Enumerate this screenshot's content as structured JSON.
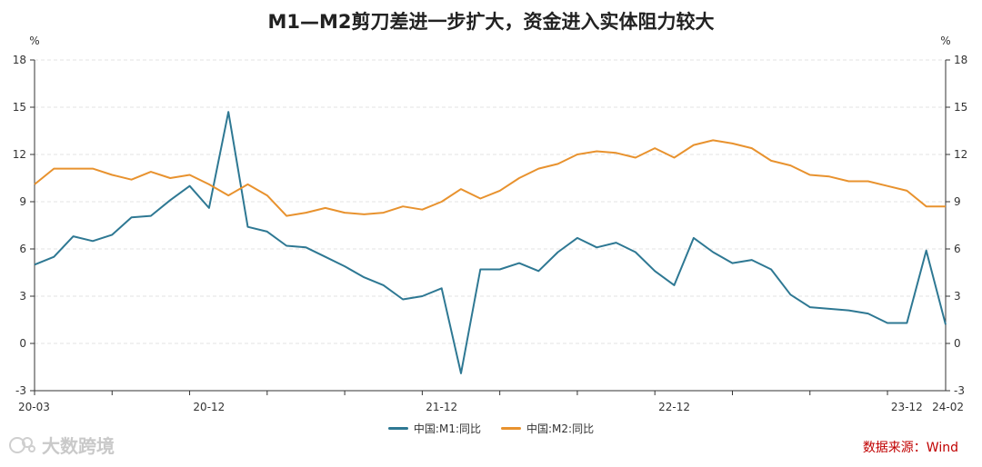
{
  "colors": {
    "m1": "#2e7893",
    "m2": "#e8922e",
    "source": "#c00000",
    "grid": "#e3e3e3"
  },
  "watermark_text": "大数跨境",
  "source_note": "数据来源：Wind",
  "chart_data": {
    "type": "line",
    "title": "M1—M2剪刀差进一步扩大，资金进入实体阻力较大",
    "ylabel_left": "%",
    "ylabel_right": "%",
    "ylim": [
      -3,
      18
    ],
    "yticks": [
      -3,
      0,
      3,
      6,
      9,
      12,
      15,
      18
    ],
    "grid": true,
    "legend_position": "bottom",
    "x": [
      "20-03",
      "20-04",
      "20-05",
      "20-06",
      "20-07",
      "20-08",
      "20-09",
      "20-10",
      "20-11",
      "20-12",
      "21-01",
      "21-02",
      "21-03",
      "21-04",
      "21-05",
      "21-06",
      "21-07",
      "21-08",
      "21-09",
      "21-10",
      "21-11",
      "21-12",
      "22-01",
      "22-02",
      "22-03",
      "22-04",
      "22-05",
      "22-06",
      "22-07",
      "22-08",
      "22-09",
      "22-10",
      "22-11",
      "22-12",
      "23-01",
      "23-02",
      "23-03",
      "23-04",
      "23-05",
      "23-06",
      "23-07",
      "23-08",
      "23-09",
      "23-10",
      "23-11",
      "23-12",
      "24-01",
      "24-02"
    ],
    "xtick_labels": [
      {
        "index": 0,
        "label": "20-03"
      },
      {
        "index": 9,
        "label": "20-12"
      },
      {
        "index": 21,
        "label": "21-12"
      },
      {
        "index": 33,
        "label": "22-12"
      },
      {
        "index": 45,
        "label": "23-12"
      },
      {
        "index": 47,
        "label": "24-02"
      }
    ],
    "series": [
      {
        "name": "中国:M1:同比",
        "color_key": "m1",
        "values": [
          5.0,
          5.5,
          6.8,
          6.5,
          6.9,
          8.0,
          8.1,
          9.1,
          10.0,
          8.6,
          14.7,
          7.4,
          7.1,
          6.2,
          6.1,
          5.5,
          4.9,
          4.2,
          3.7,
          2.8,
          3.0,
          3.5,
          -1.9,
          4.7,
          4.7,
          5.1,
          4.6,
          5.8,
          6.7,
          6.1,
          6.4,
          5.8,
          4.6,
          3.7,
          6.7,
          5.8,
          5.1,
          5.3,
          4.7,
          3.1,
          2.3,
          2.2,
          2.1,
          1.9,
          1.3,
          1.3,
          5.9,
          1.2
        ]
      },
      {
        "name": "中国:M2:同比",
        "color_key": "m2",
        "values": [
          10.1,
          11.1,
          11.1,
          11.1,
          10.7,
          10.4,
          10.9,
          10.5,
          10.7,
          10.1,
          9.4,
          10.1,
          9.4,
          8.1,
          8.3,
          8.6,
          8.3,
          8.2,
          8.3,
          8.7,
          8.5,
          9.0,
          9.8,
          9.2,
          9.7,
          10.5,
          11.1,
          11.4,
          12.0,
          12.2,
          12.1,
          11.8,
          12.4,
          11.8,
          12.6,
          12.9,
          12.7,
          12.4,
          11.6,
          11.3,
          10.7,
          10.6,
          10.3,
          10.3,
          10.0,
          9.7,
          8.7,
          8.7
        ]
      }
    ]
  }
}
